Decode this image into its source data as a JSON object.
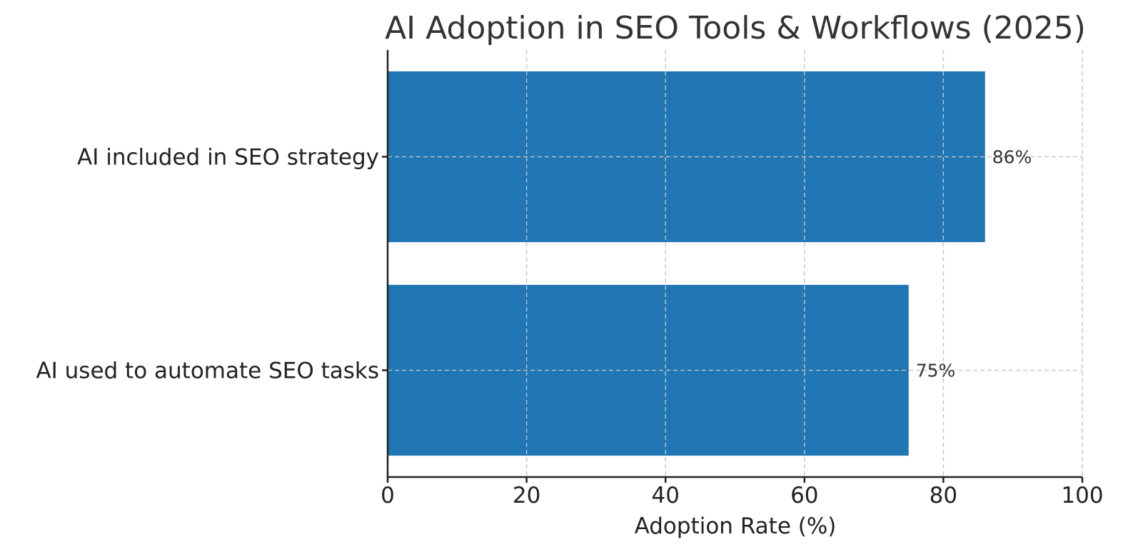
{
  "chart_data": {
    "type": "bar",
    "orientation": "horizontal",
    "title": "AI Adoption in SEO Tools & Workflows (2025)",
    "xlabel": "Adoption Rate (%)",
    "ylabel": "",
    "xlim": [
      0,
      100
    ],
    "xticks": [
      0,
      20,
      40,
      60,
      80,
      100
    ],
    "grid": true,
    "categories": [
      "AI included in SEO strategy",
      "AI used to automate SEO tasks"
    ],
    "values": [
      86,
      75
    ],
    "data_labels": [
      "86%",
      "75%"
    ],
    "bar_color": "#2077b4"
  }
}
